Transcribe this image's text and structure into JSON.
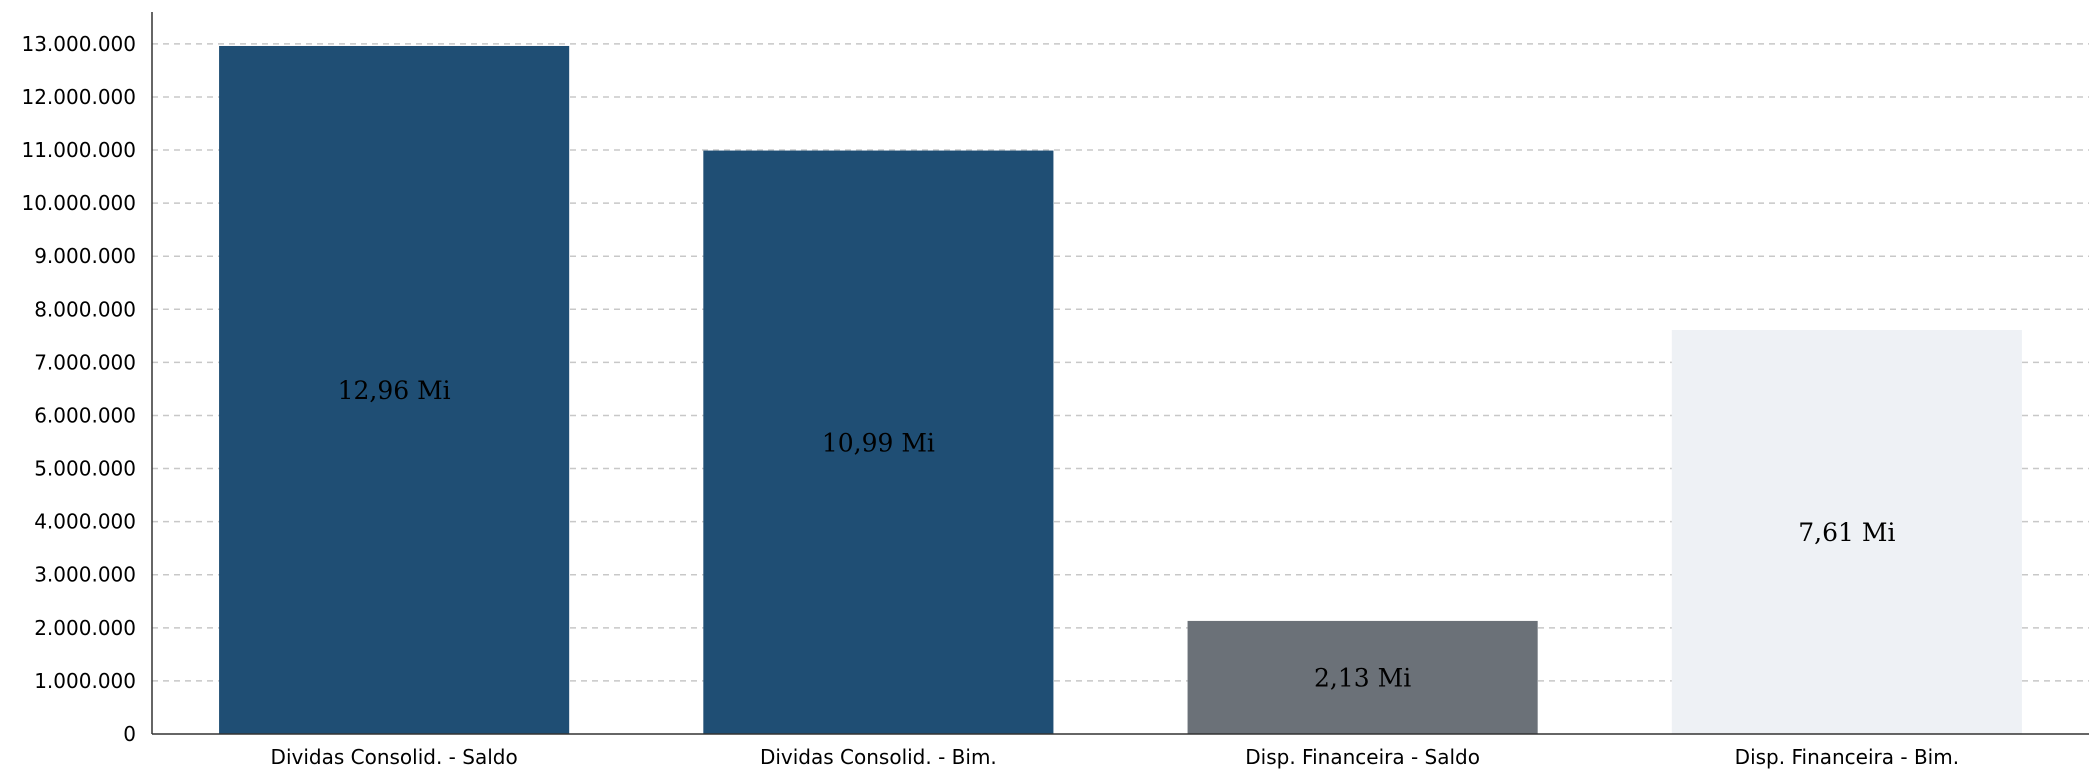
{
  "chart_data": {
    "type": "bar",
    "title": "",
    "xlabel": "",
    "ylabel": "",
    "categories": [
      "Dividas Consolid. - Saldo",
      "Dividas Consolid. - Bim.",
      "Disp. Financeira - Saldo",
      "Disp. Financeira - Bim."
    ],
    "values": [
      12960000,
      10990000,
      2130000,
      7610000
    ],
    "data_labels": [
      "12,96 Mi",
      "10,99 Mi",
      "2,13 Mi",
      "7,61 Mi"
    ],
    "bar_colors": [
      "#1f4e74",
      "#1f4e74",
      "#6b7178",
      "#eef1f5"
    ],
    "ylim": [
      0,
      13600000
    ],
    "yticks": [
      0,
      1000000,
      2000000,
      3000000,
      4000000,
      5000000,
      6000000,
      7000000,
      8000000,
      9000000,
      10000000,
      11000000,
      12000000,
      13000000
    ],
    "ytick_labels": [
      "0",
      "1.000.000",
      "2.000.000",
      "3.000.000",
      "4.000.000",
      "5.000.000",
      "6.000.000",
      "7.000.000",
      "8.000.000",
      "9.000.000",
      "10.000.000",
      "11.000.000",
      "12.000.000",
      "13.000.000"
    ],
    "grid": true,
    "grid_style": "dashed",
    "legend": "none"
  }
}
